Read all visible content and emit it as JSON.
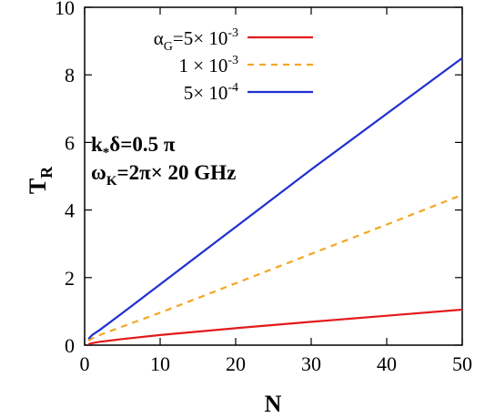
{
  "chart_data": {
    "type": "line",
    "title": "",
    "xlabel": "N",
    "ylabel_main": "T",
    "ylabel_sub": "R",
    "xlim": [
      0,
      50
    ],
    "ylim": [
      0,
      10
    ],
    "xticks": [
      "0",
      "10",
      "20",
      "30",
      "40",
      "50"
    ],
    "yticks": [
      "0",
      "2",
      "4",
      "6",
      "8",
      "10"
    ],
    "grid": false,
    "legend_position": "top-right",
    "annotation": {
      "line1": {
        "a": "k",
        "b": "*",
        "c": "δ=0.5 π"
      },
      "line2": {
        "a": "ω",
        "b": "K",
        "c": "=2π× 20 GHz"
      }
    },
    "series": [
      {
        "legend": {
          "a": "α",
          "b": "G",
          "c": "=5× 10",
          "d": "-3"
        },
        "color": "#e41a1c",
        "dash": "none",
        "x": [
          0.5,
          1,
          2,
          5,
          10,
          20,
          30,
          40,
          50
        ],
        "y": [
          0.03,
          0.06,
          0.1,
          0.18,
          0.3,
          0.5,
          0.69,
          0.87,
          1.05
        ]
      },
      {
        "legend": {
          "a": "",
          "b": "",
          "c": "1 × 10",
          "d": "-3"
        },
        "color": "#f5a623",
        "dash": "7,6",
        "x": [
          0.5,
          1,
          2,
          5,
          10,
          20,
          30,
          40,
          50
        ],
        "y": [
          0.13,
          0.2,
          0.3,
          0.55,
          0.96,
          1.83,
          2.7,
          3.57,
          4.45
        ]
      },
      {
        "legend": {
          "a": "",
          "b": "",
          "c": "5× 10",
          "d": "-4"
        },
        "color": "#1f2fd0",
        "dash": "none",
        "x": [
          0.5,
          1,
          2,
          5,
          10,
          20,
          30,
          40,
          50
        ],
        "y": [
          0.18,
          0.3,
          0.45,
          0.95,
          1.8,
          3.5,
          5.2,
          6.85,
          8.5
        ]
      }
    ]
  }
}
